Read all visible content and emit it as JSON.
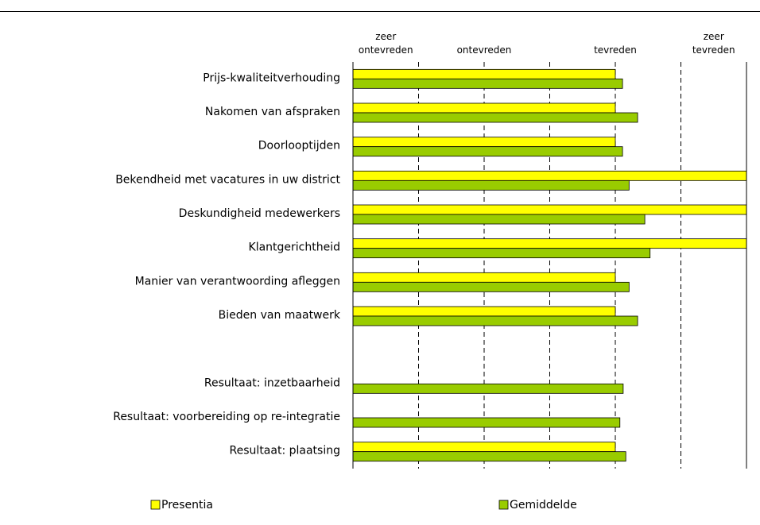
{
  "chart_data": {
    "type": "barh",
    "categories": [
      "Prijs-kwaliteitverhouding",
      "Nakomen van afspraken",
      "Doorlooptijden",
      "Bekendheid met vacatures in uw district",
      "Deskundigheid medewerkers",
      "Klantgerichtheid",
      "Manier van verantwoording afleggen",
      "Bieden van maatwerk",
      null,
      "Resultaat: inzetbaarheid",
      "Resultaat: voorbereiding op re-integratie",
      "Resultaat: plaatsing"
    ],
    "series": [
      {
        "name": "Presentia",
        "color": "#ffff00",
        "values": [
          4,
          4,
          4,
          6,
          6,
          6,
          4,
          4,
          null,
          null,
          null,
          4
        ]
      },
      {
        "name": "Gemiddelde",
        "color": "#99cc00",
        "values": [
          4.11,
          4.34,
          4.11,
          4.21,
          4.45,
          4.53,
          4.21,
          4.34,
          null,
          4.12,
          4.07,
          4.16
        ]
      }
    ],
    "xlim": [
      0,
      6
    ],
    "xticks": [
      {
        "value": 0.5,
        "label": "zeer ontevreden"
      },
      {
        "value": 2,
        "label": "ontevreden"
      },
      {
        "value": 4,
        "label": "tevreden"
      },
      {
        "value": 5.5,
        "label": "zeer tevreden"
      }
    ],
    "grid_lines": [
      1,
      2,
      3,
      4,
      5
    ],
    "grid": true,
    "legend": "bottom"
  }
}
